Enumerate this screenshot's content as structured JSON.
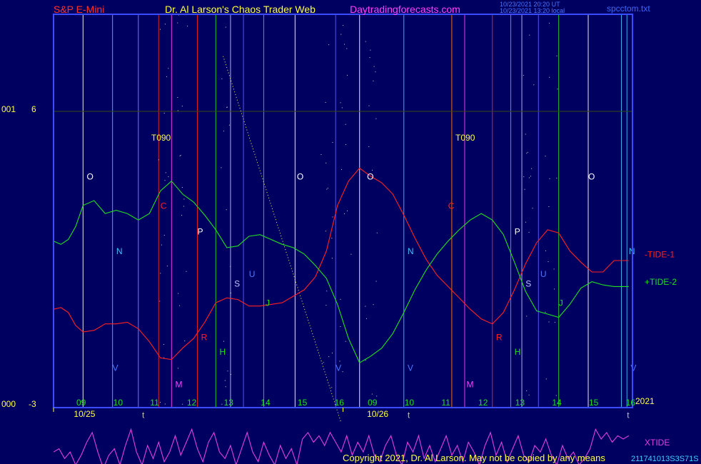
{
  "header": {
    "left": "S&P E-Mini",
    "center": "Dr. Al Larson's Chaos Trader Web",
    "site": "Daytradingforecasts.com",
    "stamp_1": "10/23/2021 20:20 UT",
    "stamp_2": "10/23/2021 13:20 local",
    "file": "spcctom.txt"
  },
  "footer": {
    "copyright": "Copyright 2021, Dr. Al Larson. May not be copied by any means",
    "stamp": "211741013S3S71S"
  },
  "colors": {
    "background": "#000060",
    "frame": "#3a4cff",
    "tide1": "#ff2020",
    "tide2": "#20e020",
    "xtide": "#e040e0",
    "header_left": "#ff3030",
    "header_center": "#ffff40",
    "header_site": "#ff40ff",
    "footer": "#ffff40"
  },
  "chart_data": {
    "type": "line",
    "title": "",
    "y_axis_labels": {
      "top_left": "001",
      "top_value": "6",
      "bottom_left": "000",
      "bottom_value": "-3"
    },
    "ylim": [
      -3,
      6
    ],
    "x_hour_labels": [
      "09",
      "10",
      "11",
      "12",
      "13",
      "14",
      "15",
      "16",
      "09",
      "10",
      "11",
      "12",
      "13",
      "14",
      "15",
      "16"
    ],
    "x_date_labels": [
      "10/25",
      "10/26"
    ],
    "year_label": "2021",
    "vertical_markers": [
      {
        "x_hour": 9.2,
        "color": "#ffffff"
      },
      {
        "x_hour": 10.0,
        "color": "#40c0ff"
      },
      {
        "x_hour": 10.7,
        "color": "#8080ff"
      },
      {
        "x_hour": 11.25,
        "color": "#ff2020"
      },
      {
        "x_hour": 11.6,
        "color": "#ff40ff"
      },
      {
        "x_hour": 12.3,
        "color": "#ff2020"
      },
      {
        "x_hour": 12.8,
        "color": "#20e020"
      },
      {
        "x_hour": 13.2,
        "color": "#c0c0ff"
      },
      {
        "x_hour": 13.55,
        "color": "#6060ff"
      },
      {
        "x_hour": 14.1,
        "color": "#20e020"
      },
      {
        "x_hour": 14.95,
        "color": "#ffffff"
      },
      {
        "x_hour": 16.05,
        "color": "#6060ff"
      },
      {
        "x_hour": 16.7,
        "color": "#ffffff"
      },
      {
        "x_hour": 17.9,
        "color": "#40c0ff"
      },
      {
        "x_hour": 19.2,
        "color": "#ff8000"
      },
      {
        "x_hour": 19.55,
        "color": "#ff40ff"
      },
      {
        "x_hour": 20.3,
        "color": "#ff2020"
      },
      {
        "x_hour": 20.8,
        "color": "#20e020"
      },
      {
        "x_hour": 21.1,
        "color": "#c0c0ff"
      },
      {
        "x_hour": 21.55,
        "color": "#6060ff"
      },
      {
        "x_hour": 22.1,
        "color": "#20e020"
      },
      {
        "x_hour": 22.9,
        "color": "#ffffff"
      },
      {
        "x_hour": 23.8,
        "color": "#40c0ff"
      },
      {
        "x_hour": 23.95,
        "color": "#40c0ff"
      }
    ],
    "marker_letters": [
      {
        "text": "T090",
        "x_hour": 11.05,
        "level": 5.1,
        "color": "#ffff40"
      },
      {
        "text": "T090",
        "x_hour": 19.3,
        "level": 5.1,
        "color": "#ffff40"
      },
      {
        "text": "O",
        "x_hour": 9.3,
        "level": 3.9,
        "color": "#ffffff"
      },
      {
        "text": "O",
        "x_hour": 15.0,
        "level": 3.9,
        "color": "#ffffff"
      },
      {
        "text": "O",
        "x_hour": 16.9,
        "level": 3.9,
        "color": "#ffffff"
      },
      {
        "text": "O",
        "x_hour": 22.9,
        "level": 3.9,
        "color": "#ffffff"
      },
      {
        "text": "C",
        "x_hour": 11.3,
        "level": 3.0,
        "color": "#ff2020"
      },
      {
        "text": "C",
        "x_hour": 19.1,
        "level": 3.0,
        "color": "#ff2020"
      },
      {
        "text": "P",
        "x_hour": 12.3,
        "level": 2.2,
        "color": "#ffffff"
      },
      {
        "text": "P",
        "x_hour": 20.9,
        "level": 2.2,
        "color": "#ffffff"
      },
      {
        "text": "N",
        "x_hour": 10.1,
        "level": 1.6,
        "color": "#40c0ff"
      },
      {
        "text": "N",
        "x_hour": 18.0,
        "level": 1.6,
        "color": "#40c0ff"
      },
      {
        "text": "N",
        "x_hour": 24.0,
        "level": 1.6,
        "color": "#40c0ff"
      },
      {
        "text": "U",
        "x_hour": 13.7,
        "level": 0.9,
        "color": "#4a78ff"
      },
      {
        "text": "U",
        "x_hour": 21.6,
        "level": 0.9,
        "color": "#4a78ff"
      },
      {
        "text": "S",
        "x_hour": 13.3,
        "level": 0.6,
        "color": "#c0c0ff"
      },
      {
        "text": "S",
        "x_hour": 21.2,
        "level": 0.6,
        "color": "#c0c0ff"
      },
      {
        "text": "J",
        "x_hour": 14.15,
        "level": 0.0,
        "color": "#20e020"
      },
      {
        "text": "J",
        "x_hour": 22.1,
        "level": 0.0,
        "color": "#20e020"
      },
      {
        "text": "R",
        "x_hour": 12.4,
        "level": -1.05,
        "color": "#ff2020"
      },
      {
        "text": "R",
        "x_hour": 20.4,
        "level": -1.05,
        "color": "#ff2020"
      },
      {
        "text": "H",
        "x_hour": 12.9,
        "level": -1.5,
        "color": "#20e020"
      },
      {
        "text": "H",
        "x_hour": 20.9,
        "level": -1.5,
        "color": "#20e020"
      },
      {
        "text": "V",
        "x_hour": 10.0,
        "level": -2.0,
        "color": "#4a78ff"
      },
      {
        "text": "V",
        "x_hour": 16.05,
        "level": -2.0,
        "color": "#4a78ff"
      },
      {
        "text": "V",
        "x_hour": 18.0,
        "level": -2.0,
        "color": "#4a78ff"
      },
      {
        "text": "V",
        "x_hour": 24.05,
        "level": -2.0,
        "color": "#4a78ff"
      },
      {
        "text": "M",
        "x_hour": 11.7,
        "level": -2.5,
        "color": "#ff40ff"
      },
      {
        "text": "M",
        "x_hour": 19.6,
        "level": -2.5,
        "color": "#ff40ff"
      },
      {
        "text": "t",
        "x_hour": 10.8,
        "level": -3.45,
        "color": "#c0c0c0"
      },
      {
        "text": "t",
        "x_hour": 18.0,
        "level": -3.45,
        "color": "#c0c0c0"
      },
      {
        "text": "t",
        "x_hour": 23.95,
        "level": -3.45,
        "color": "#c0c0c0"
      }
    ],
    "series": [
      {
        "name": "-TIDE-1",
        "color": "#ff2020",
        "x": [
          8.4,
          8.6,
          8.8,
          9.0,
          9.2,
          9.5,
          9.8,
          10.1,
          10.4,
          10.7,
          11.0,
          11.3,
          11.6,
          11.9,
          12.2,
          12.5,
          12.8,
          13.1,
          13.4,
          13.7,
          14.0,
          14.3,
          14.6,
          14.9,
          15.2,
          15.5,
          15.8,
          16.1,
          16.4,
          16.7,
          17.0,
          17.3,
          17.6,
          17.9,
          18.2,
          18.5,
          18.8,
          19.1,
          19.4,
          19.7,
          20.0,
          20.3,
          20.6,
          20.9,
          21.2,
          21.5,
          21.8,
          22.1,
          22.4,
          22.7,
          23.0,
          23.3,
          23.6,
          24.0
        ],
        "y": [
          -0.1,
          -0.05,
          -0.2,
          -0.6,
          -0.8,
          -0.75,
          -0.55,
          -0.55,
          -0.5,
          -0.7,
          -1.1,
          -1.6,
          -1.65,
          -1.3,
          -1.0,
          -0.5,
          0.1,
          0.25,
          0.2,
          0.0,
          0.0,
          0.05,
          0.1,
          0.3,
          0.5,
          0.9,
          1.7,
          3.1,
          3.85,
          4.25,
          4.0,
          3.8,
          3.45,
          2.8,
          2.1,
          1.45,
          0.95,
          0.6,
          0.25,
          -0.1,
          -0.4,
          -0.55,
          -0.2,
          0.5,
          1.3,
          1.95,
          2.35,
          2.25,
          1.7,
          1.35,
          1.05,
          1.05,
          1.4,
          1.4
        ]
      },
      {
        "name": "+TIDE-2",
        "color": "#20e020",
        "x": [
          8.4,
          8.6,
          8.8,
          9.0,
          9.2,
          9.5,
          9.8,
          10.1,
          10.4,
          10.7,
          11.0,
          11.3,
          11.6,
          11.9,
          12.2,
          12.5,
          12.8,
          13.1,
          13.4,
          13.7,
          14.0,
          14.3,
          14.6,
          14.9,
          15.2,
          15.5,
          15.8,
          16.1,
          16.4,
          16.7,
          17.0,
          17.3,
          17.6,
          17.9,
          18.2,
          18.5,
          18.8,
          19.1,
          19.4,
          19.7,
          20.0,
          20.3,
          20.6,
          20.9,
          21.2,
          21.5,
          21.8,
          22.1,
          22.4,
          22.7,
          23.0,
          23.3,
          23.6,
          24.0
        ],
        "y": [
          2.0,
          1.9,
          2.05,
          2.45,
          3.1,
          3.25,
          2.85,
          2.95,
          2.85,
          2.65,
          2.85,
          3.55,
          3.85,
          3.45,
          3.2,
          2.8,
          2.35,
          1.8,
          1.85,
          2.15,
          2.2,
          2.05,
          1.9,
          1.8,
          1.6,
          1.25,
          0.85,
          0.05,
          -1.0,
          -1.75,
          -1.55,
          -1.3,
          -0.85,
          -0.2,
          0.5,
          1.1,
          1.6,
          2.0,
          2.35,
          2.65,
          2.85,
          2.65,
          2.2,
          1.35,
          0.45,
          -0.15,
          -0.25,
          -0.35,
          0.05,
          0.55,
          0.75,
          0.65,
          0.6,
          0.6
        ]
      },
      {
        "name": "XTIDE",
        "color": "#e040e0",
        "x": [
          8.4,
          8.55,
          8.7,
          8.85,
          9.0,
          9.15,
          9.3,
          9.45,
          9.6,
          9.75,
          9.9,
          10.05,
          10.2,
          10.35,
          10.5,
          10.65,
          10.8,
          10.95,
          11.1,
          11.25,
          11.4,
          11.55,
          11.7,
          11.85,
          12.0,
          12.15,
          12.3,
          12.45,
          12.6,
          12.75,
          12.9,
          13.05,
          13.2,
          13.35,
          13.5,
          13.65,
          13.8,
          13.95,
          14.1,
          14.25,
          14.4,
          14.55,
          14.7,
          14.85,
          15.0,
          15.15,
          15.3,
          15.45,
          15.6,
          15.75,
          15.9,
          16.05,
          16.2,
          16.35,
          16.5,
          16.65,
          16.8,
          16.95,
          17.1,
          17.25,
          17.4,
          17.55,
          17.7,
          17.85,
          18.0,
          18.15,
          18.3,
          18.45,
          18.6,
          18.75,
          18.9,
          19.05,
          19.2,
          19.35,
          19.5,
          19.65,
          19.8,
          19.95,
          20.1,
          20.25,
          20.4,
          20.55,
          20.7,
          20.85,
          21.0,
          21.15,
          21.3,
          21.45,
          21.6,
          21.75,
          21.9,
          22.05,
          22.2,
          22.35,
          22.5,
          22.65,
          22.8,
          22.95,
          23.1,
          23.25,
          23.4,
          23.55,
          23.7,
          23.85,
          24.0
        ],
        "y": [
          -4.5,
          -4.4,
          -4.7,
          -4.5,
          -4.9,
          -4.6,
          -4.2,
          -3.9,
          -4.5,
          -5.0,
          -4.6,
          -4.4,
          -4.9,
          -4.3,
          -3.8,
          -4.5,
          -4.9,
          -4.3,
          -4.7,
          -4.2,
          -4.8,
          -4.5,
          -4.0,
          -4.6,
          -4.2,
          -3.8,
          -4.4,
          -4.8,
          -4.2,
          -3.9,
          -4.5,
          -4.7,
          -4.3,
          -4.9,
          -4.4,
          -3.9,
          -4.5,
          -4.8,
          -4.2,
          -4.6,
          -4.9,
          -4.3,
          -4.7,
          -4.4,
          -4.9,
          -4.1,
          -3.9,
          -4.2,
          -4.0,
          -4.3,
          -3.9,
          -4.2,
          -4.5,
          -4.0,
          -4.6,
          -4.2,
          -4.5,
          -4.0,
          -4.6,
          -4.8,
          -4.3,
          -4.0,
          -4.6,
          -4.9,
          -4.2,
          -4.5,
          -4.0,
          -4.7,
          -4.3,
          -4.8,
          -4.4,
          -4.0,
          -4.6,
          -4.3,
          -4.8,
          -4.2,
          -4.5,
          -4.9,
          -4.3,
          -3.9,
          -4.6,
          -4.2,
          -4.8,
          -4.4,
          -4.0,
          -4.6,
          -4.8,
          -4.3,
          -4.5,
          -4.1,
          -4.6,
          -4.9,
          -4.3,
          -4.7,
          -4.5,
          -4.9,
          -4.7,
          -4.4,
          -3.8,
          -4.1,
          -3.9,
          -4.2,
          -4.0,
          -4.1,
          -4.0
        ]
      }
    ],
    "legend": [
      {
        "text": "-TIDE-1",
        "color": "#ff2020"
      },
      {
        "text": "+TIDE-2",
        "color": "#20e020"
      },
      {
        "text": "XTIDE",
        "color": "#e040e0"
      }
    ],
    "trend_line": {
      "from": [
        13.0,
        7.7
      ],
      "to": [
        16.2,
        -3.6
      ],
      "color": "#ffff60"
    },
    "grid": false,
    "legend_position": "right"
  }
}
